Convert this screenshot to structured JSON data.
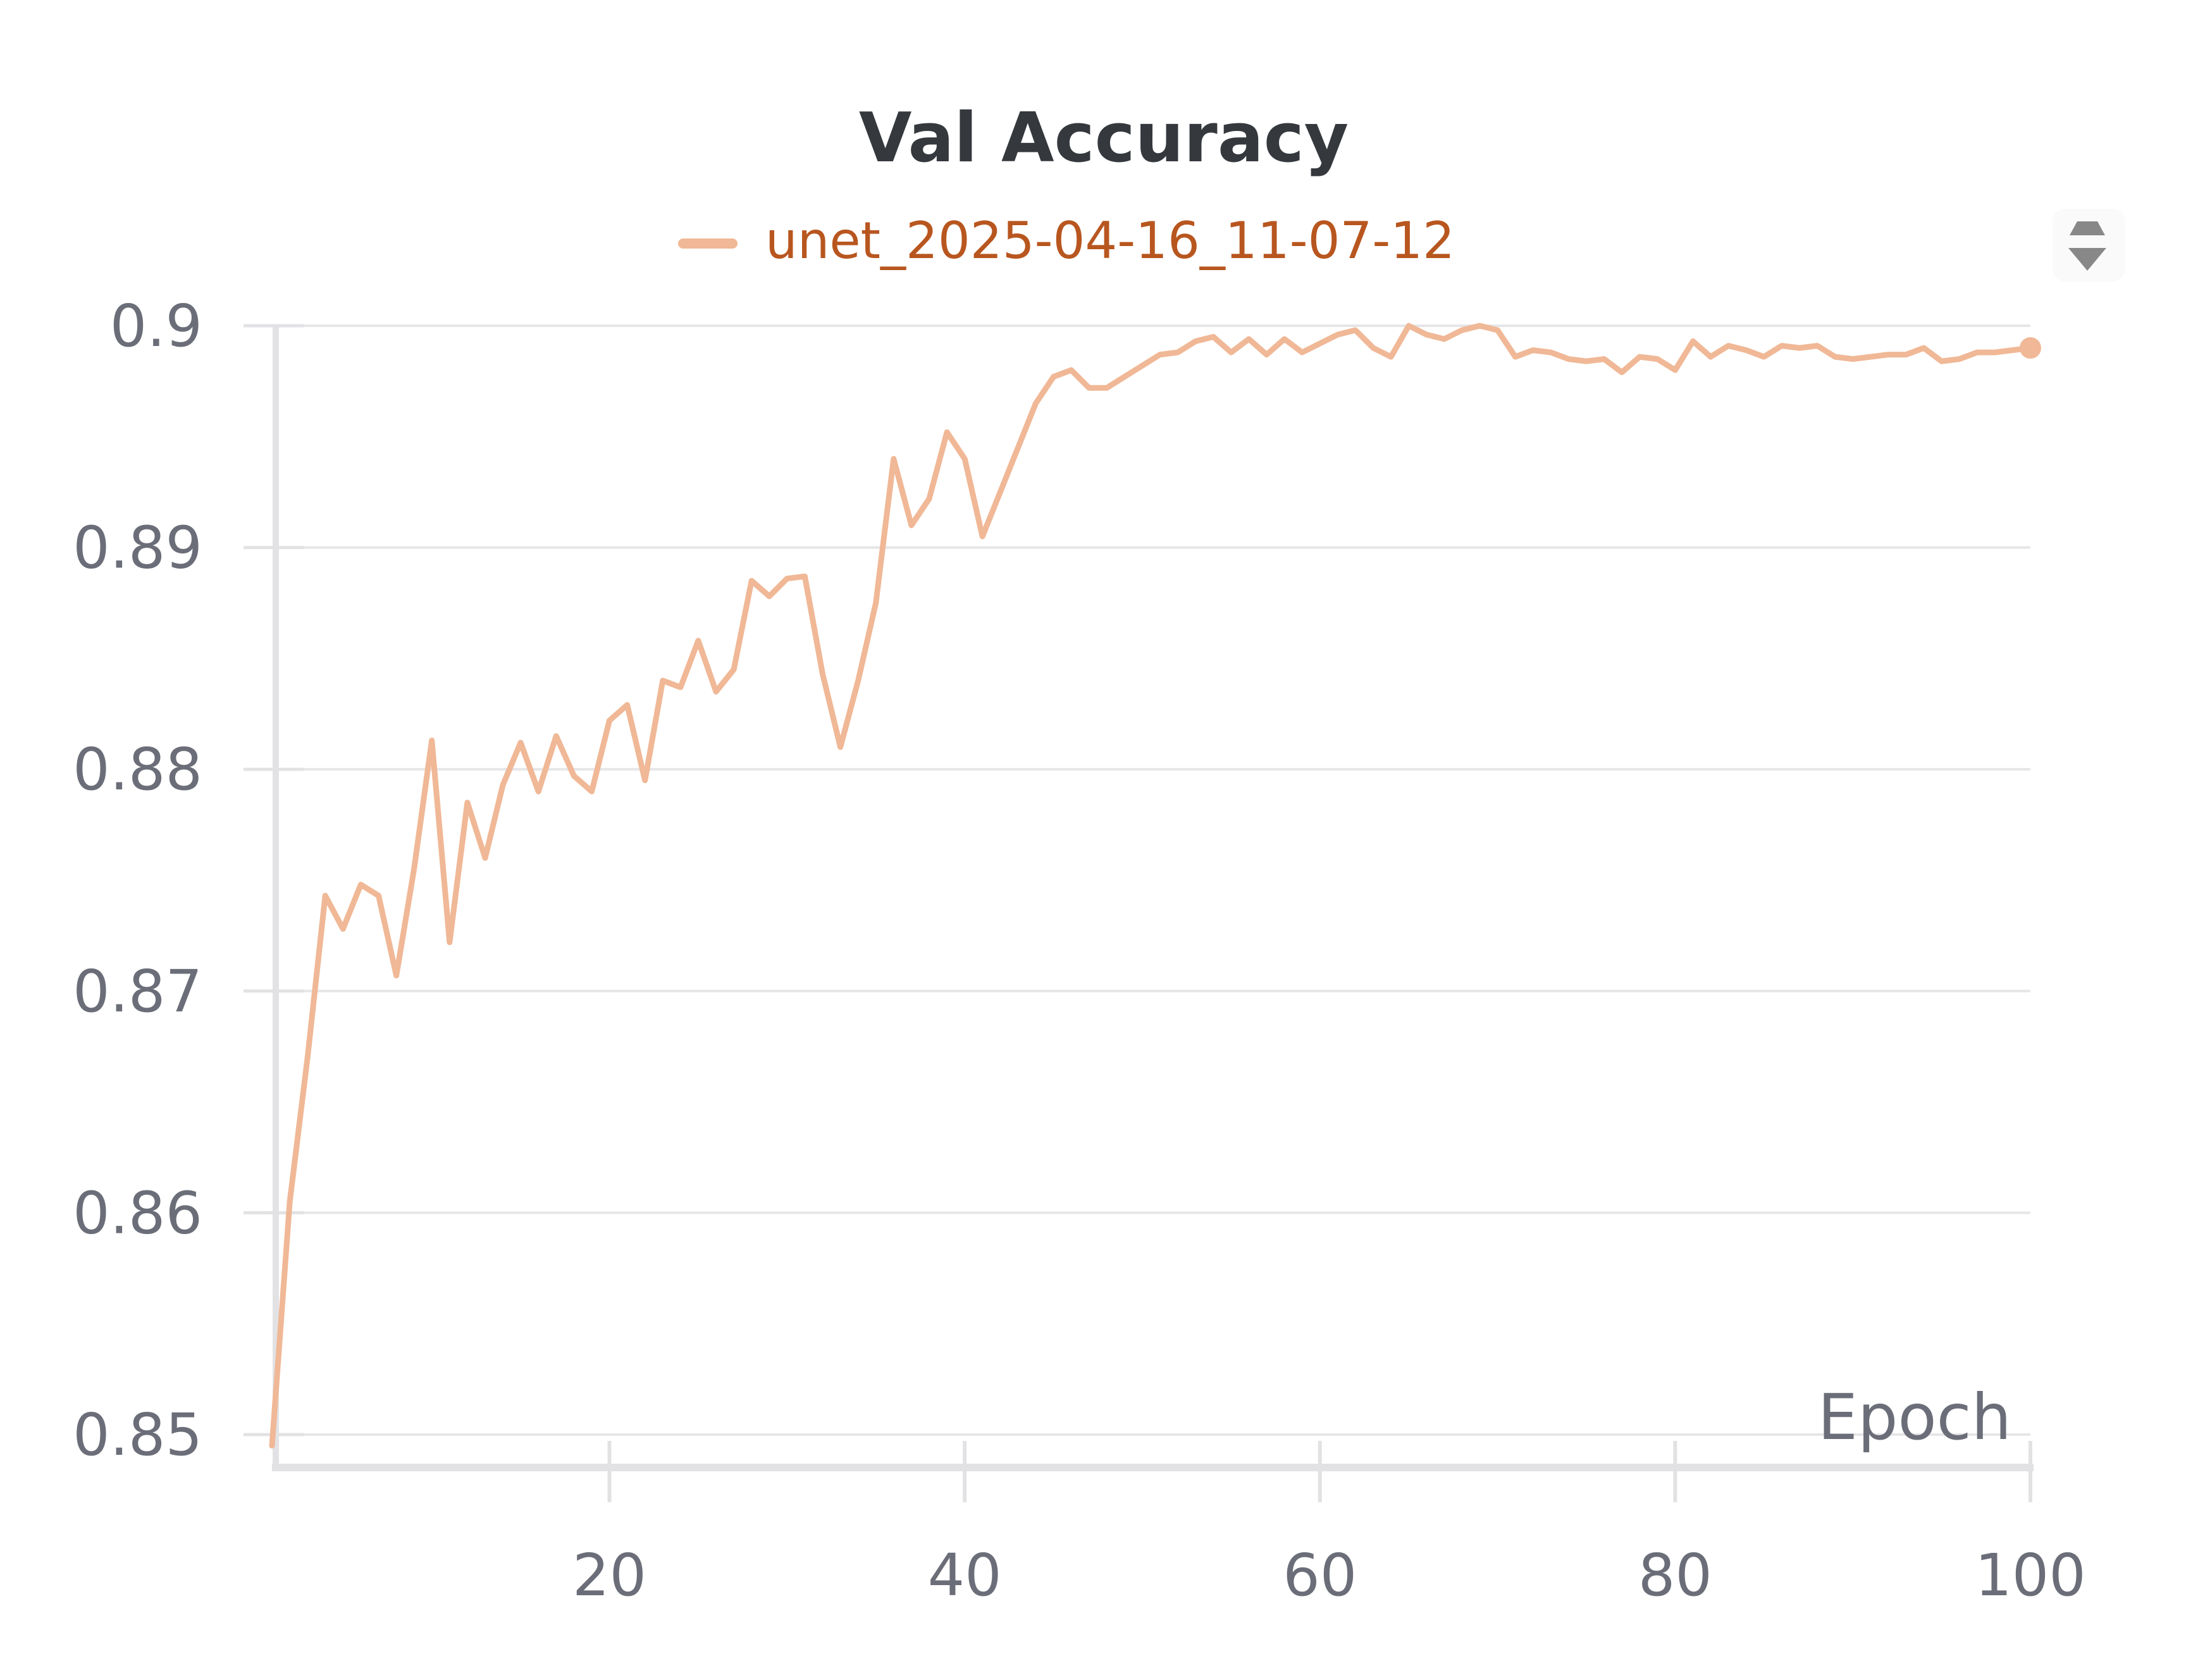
{
  "chart_data": {
    "type": "line",
    "title": "Val Accuracy",
    "xlabel": "Epoch",
    "ylabel": "",
    "xlim": [
      1,
      100
    ],
    "ylim": [
      0.85,
      0.9
    ],
    "x_ticks": [
      20,
      40,
      60,
      80,
      100
    ],
    "y_ticks": [
      0.85,
      0.86,
      0.87,
      0.88,
      0.89,
      0.9
    ],
    "y_tick_labels": [
      "0.85",
      "0.86",
      "0.87",
      "0.88",
      "0.89",
      "0.9"
    ],
    "x_tick_labels": [
      "20",
      "40",
      "60",
      "80",
      "100"
    ],
    "grid": true,
    "legend_position": "top-center",
    "series": [
      {
        "name": "unet_2025-04-16_11-07-12",
        "color": "#f0b896",
        "x": [
          1,
          2,
          3,
          4,
          5,
          6,
          7,
          8,
          9,
          10,
          11,
          12,
          13,
          14,
          15,
          16,
          17,
          18,
          19,
          20,
          21,
          22,
          23,
          24,
          25,
          26,
          27,
          28,
          29,
          30,
          31,
          32,
          33,
          34,
          35,
          36,
          37,
          38,
          39,
          40,
          41,
          42,
          43,
          44,
          45,
          46,
          47,
          48,
          49,
          50,
          51,
          52,
          53,
          54,
          55,
          56,
          57,
          58,
          59,
          60,
          61,
          62,
          63,
          64,
          65,
          66,
          67,
          68,
          69,
          70,
          71,
          72,
          73,
          74,
          75,
          76,
          77,
          78,
          79,
          80,
          81,
          82,
          83,
          84,
          85,
          86,
          87,
          88,
          89,
          90,
          91,
          92,
          93,
          94,
          95,
          96,
          97,
          98,
          99,
          100
        ],
        "y": [
          0.8495,
          0.8605,
          0.867,
          0.8743,
          0.8728,
          0.8748,
          0.8743,
          0.8707,
          0.8755,
          0.8813,
          0.8722,
          0.8785,
          0.876,
          0.8793,
          0.8812,
          0.879,
          0.8815,
          0.8797,
          0.879,
          0.8822,
          0.8829,
          0.8795,
          0.884,
          0.8837,
          0.8858,
          0.8835,
          0.8845,
          0.8885,
          0.8878,
          0.8886,
          0.8887,
          0.8843,
          0.881,
          0.884,
          0.8875,
          0.894,
          0.891,
          0.8922,
          0.8952,
          0.894,
          0.8905,
          0.8925,
          0.8945,
          0.8965,
          0.8977,
          0.898,
          0.8972,
          0.8972,
          0.8977,
          0.8982,
          0.8987,
          0.8988,
          0.8993,
          0.8995,
          0.8988,
          0.8994,
          0.8987,
          0.8994,
          0.8988,
          0.8992,
          0.8996,
          0.8998,
          0.899,
          0.8986,
          0.9,
          0.8996,
          0.8994,
          0.8998,
          0.9,
          0.8998,
          0.8986,
          0.8989,
          0.8988,
          0.8985,
          0.8984,
          0.8985,
          0.8979,
          0.8986,
          0.8985,
          0.898,
          0.8993,
          0.8986,
          0.8991,
          0.8989,
          0.8986,
          0.8991,
          0.899,
          0.8991,
          0.8986,
          0.8985,
          0.8986,
          0.8987,
          0.8987,
          0.899,
          0.8984,
          0.8985,
          0.8988,
          0.8988,
          0.8989,
          0.899
        ]
      }
    ]
  },
  "colors": {
    "series_line": "#f0b896",
    "legend_text": "#b8561f",
    "title": "#35383d",
    "tick_text": "#6b6e78",
    "grid": "#e6e6e8",
    "axis": "#e2e2e4",
    "menu_icon": "#888888"
  },
  "icons": {
    "menu": "sort-arrows-icon"
  }
}
